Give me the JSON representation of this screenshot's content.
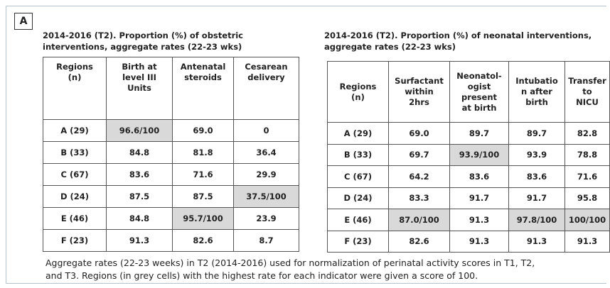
{
  "panel_label": "A",
  "left": {
    "title": "2014-2016 (T2). Proportion (%) of obstetric\ninterventions, aggregate rates (22-23 wks)",
    "table": {
      "header": [
        "Regions\n(n)",
        "Birth at\nlevel III\nUnits",
        "Antenatal\nsteroids",
        "Cesarean\ndelivery"
      ],
      "rows": [
        [
          "A (29)",
          "96.6/100",
          "69.0",
          "0"
        ],
        [
          "B (33)",
          "84.8",
          "81.8",
          "36.4"
        ],
        [
          "C (67)",
          "83.6",
          "71.6",
          "29.9"
        ],
        [
          "D (24)",
          "87.5",
          "87.5",
          "37.5/100"
        ],
        [
          "E (46)",
          "84.8",
          "95.7/100",
          "23.9"
        ],
        [
          "F (23)",
          "91.3",
          "82.6",
          "8.7"
        ]
      ],
      "highlighted_cells": [
        [
          0,
          1
        ],
        [
          3,
          3
        ],
        [
          4,
          2
        ]
      ]
    }
  },
  "right": {
    "title": "2014-2016 (T2). Proportion (%) of neonatal interventions,\naggregate rates (22-23 wks)",
    "table": {
      "header": [
        "Regions\n(n)",
        "Surfactant\nwithin\n2hrs",
        "Neonatol-\nogist\npresent\nat birth",
        "Intubatio\nn after\nbirth",
        "Transfer\nto\nNICU"
      ],
      "rows": [
        [
          "A (29)",
          "69.0",
          "89.7",
          "89.7",
          "82.8"
        ],
        [
          "B (33)",
          "69.7",
          "93.9/100",
          "93.9",
          "78.8"
        ],
        [
          "C (67)",
          "64.2",
          "83.6",
          "83.6",
          "71.6"
        ],
        [
          "D (24)",
          "83.3",
          "91.7",
          "91.7",
          "95.8"
        ],
        [
          "E (46)",
          "87.0/100",
          "91.3",
          "97.8/100",
          "100/100"
        ],
        [
          "F (23)",
          "82.6",
          "91.3",
          "91.3",
          "91.3"
        ]
      ],
      "highlighted_cells": [
        [
          1,
          2
        ],
        [
          4,
          1
        ],
        [
          4,
          3
        ],
        [
          4,
          4
        ]
      ]
    }
  },
  "highlight_color": "#d9d9d9",
  "caption": "Aggregate rates (22-23 weeks) in T2 (2014-2016) used for normalization of perinatal activity scores in T1, T2,\nand T3. Regions (in grey cells) with the highest rate for each indicator were given a score of 100."
}
